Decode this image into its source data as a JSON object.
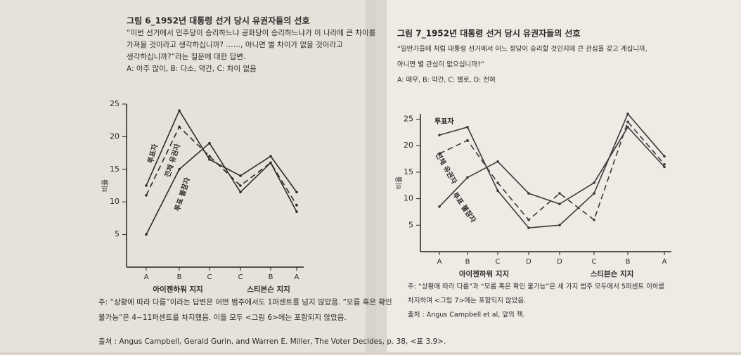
{
  "chart_data": [
    {
      "type": "line",
      "title": "그림 6_1952년 대통령 선거 당시 유권자들의 선호",
      "subtitle": [
        "“이번 선거에서 민주당이 승리하느냐 공화당이 승리하느냐가 이 나라에 큰 차이를",
        "가져올 것이라고 생각하십니까? ……, 아니면 별 차이가 없을 것이라고",
        "생각하십니까?”라는 질문에 대한 답변.",
        "A: 아주 많이, B: 다소, 약간, C: 차이 없음"
      ],
      "ylabel": "비율",
      "categories": [
        "A",
        "B",
        "C",
        "C",
        "B",
        "A"
      ],
      "group_labels": [
        "아이젠하워 지지",
        "스티븐슨 지지"
      ],
      "ylim": [
        0,
        25
      ],
      "yticks": [
        5,
        10,
        15,
        20,
        25
      ],
      "series": [
        {
          "name": "투표자",
          "color": "#2b2b2b",
          "dashed": false,
          "values": [
            12.5,
            24,
            16.5,
            14,
            17,
            11.5
          ]
        },
        {
          "name": "전체 유권자",
          "color": "#2b2b2b",
          "dashed": true,
          "values": [
            11,
            21.5,
            17,
            12.5,
            16,
            9.5
          ]
        },
        {
          "name": "투표 불참자",
          "color": "#2b2b2b",
          "dashed": false,
          "values": [
            5,
            15,
            19,
            11.5,
            16,
            8.5
          ]
        }
      ],
      "notes": [
        "주: “상황에 따라 다름”이라는 답변은 어떤 범주에서도 1퍼센트를 넘지 않았음. “모름 혹은 확인",
        "불가능”은 4~11퍼센트를 차지했음. 이들 모두 <그림 6>에는 포함되지 않았음.",
        "출처 : Angus Campbell, Gerald Gurin, and Warren E. Miller, The Voter Decides, p. 38, <표 3.9>."
      ]
    },
    {
      "type": "line",
      "title": "그림 7_1952년 대통령 선거 당시 유권자들의 선호",
      "subtitle": [
        "“일반가들에 처럼 대통령 선거에서 어느 정당이 승리할 것인지에 큰 관심을 갖고 계십니까,",
        "아니면 별 관심이 없으십니까?”",
        "A: 매우, B: 약간, C: 별로, D: 전혀"
      ],
      "ylabel": "비율",
      "categories": [
        "A",
        "B",
        "C",
        "D",
        "D",
        "C",
        "B",
        "A"
      ],
      "group_labels": [
        "아이젠하워 지지",
        "스티븐슨 지지"
      ],
      "ylim": [
        0,
        26
      ],
      "yticks": [
        5,
        10,
        15,
        20,
        25
      ],
      "series": [
        {
          "name": "투표자",
          "color": "#3a3a3a",
          "dashed": false,
          "values": [
            22,
            23.5,
            11.5,
            4.5,
            5,
            11,
            26,
            18
          ]
        },
        {
          "name": "전체 유권자",
          "color": "#3a3a3a",
          "dashed": true,
          "values": [
            18.5,
            21,
            13,
            6,
            11,
            6,
            24.5,
            16.5
          ]
        },
        {
          "name": "투표 불참자",
          "color": "#3a3a3a",
          "dashed": false,
          "values": [
            8.5,
            14,
            17,
            11,
            9,
            13,
            23.5,
            16
          ]
        }
      ],
      "notes": [
        "주: “상황에 따라 다름”과 “모름 혹은 확인 불가능”은 세 가지 범주 모두에서 5퍼센트 이하를",
        "차지하며 <그림 7>에는 포함되지 않았음.",
        "출처 : Angus Campbell et al, 앞의 책."
      ]
    }
  ]
}
